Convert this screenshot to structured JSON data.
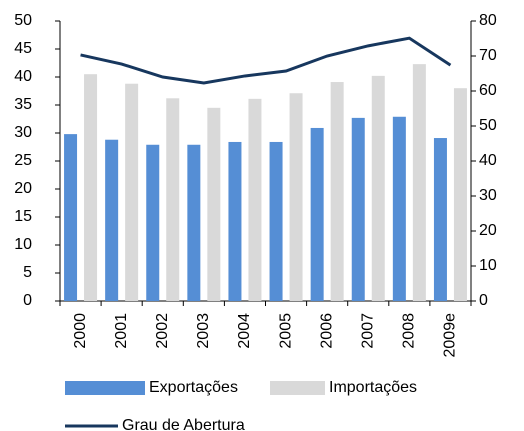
{
  "chart_data": {
    "type": "bar",
    "categories": [
      "2000",
      "2001",
      "2002",
      "2003",
      "2004",
      "2005",
      "2006",
      "2007",
      "2008",
      "2009e"
    ],
    "series": [
      {
        "name": "Exportações",
        "color": "#558ed5",
        "values": [
          29.8,
          28.8,
          27.9,
          27.9,
          28.4,
          28.4,
          30.9,
          32.7,
          32.9,
          29.1
        ]
      },
      {
        "name": "Importações",
        "color": "#d9d9d9",
        "values": [
          40.5,
          38.8,
          36.2,
          34.5,
          36.1,
          37.1,
          39.1,
          40.2,
          42.3,
          38.0
        ]
      },
      {
        "name": "Grau de Abertura",
        "color": "#17375e",
        "type": "line",
        "axis": "y2",
        "values": [
          70.3,
          67.7,
          64.0,
          62.3,
          64.3,
          65.7,
          70.0,
          72.9,
          75.1,
          67.4
        ]
      }
    ],
    "ylim": [
      0,
      50
    ],
    "yticks": [
      0,
      5,
      10,
      15,
      20,
      25,
      30,
      35,
      40,
      45,
      50
    ],
    "y2lim": [
      0,
      80
    ],
    "y2ticks": [
      0,
      10,
      20,
      30,
      40,
      50,
      60,
      70,
      80
    ],
    "grid": false
  }
}
